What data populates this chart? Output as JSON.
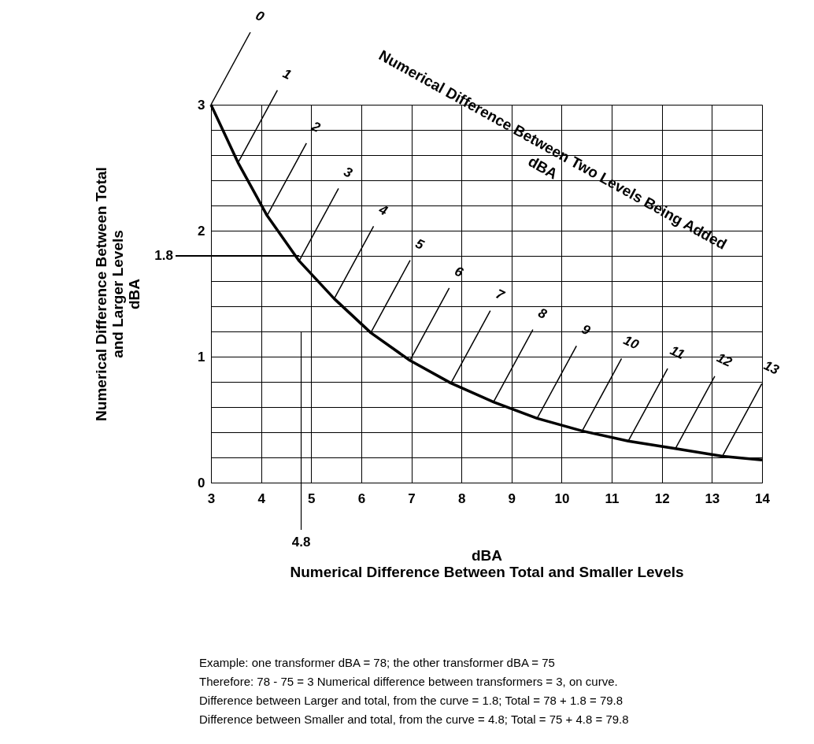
{
  "chart_data": {
    "type": "line",
    "title": "Numerical Difference Between Two Levels Being Added\ndBA",
    "xlabel": "dBA\nNumerical Difference Between Total and Smaller Levels",
    "ylabel": "Numerical Difference Between Total\nand Larger Levels\ndBA",
    "x": [
      3.0,
      3.54,
      4.12,
      4.76,
      5.46,
      6.19,
      6.97,
      7.79,
      8.64,
      9.51,
      10.41,
      11.33,
      12.27,
      13.21,
      14.0
    ],
    "series": [
      {
        "color": "#000000",
        "values": [
          3.0,
          2.54,
          2.12,
          1.76,
          1.46,
          1.19,
          0.97,
          0.79,
          0.64,
          0.51,
          0.41,
          0.33,
          0.27,
          0.21,
          0.18
        ]
      }
    ],
    "xlim": [
      3,
      14
    ],
    "xticks": [
      3,
      4,
      5,
      6,
      7,
      8,
      9,
      10,
      11,
      12,
      13,
      14
    ],
    "ylim": [
      0,
      3
    ],
    "yticks": [
      0,
      {
        "value": 0.2,
        "label": null
      },
      {
        "value": 0.4,
        "label": null
      },
      {
        "value": 0.6,
        "label": null
      },
      {
        "value": 0.8,
        "label": null
      },
      1,
      {
        "value": 1.2,
        "label": null
      },
      {
        "value": 1.4,
        "label": null
      },
      {
        "value": 1.6,
        "label": null
      },
      {
        "value": 1.8,
        "label": null
      },
      2,
      {
        "value": 2.2,
        "label": null
      },
      {
        "value": 2.4,
        "label": null
      },
      {
        "value": 2.6,
        "label": null
      },
      {
        "value": 2.8,
        "label": null
      },
      3
    ],
    "grid": true,
    "marker": "none",
    "line_style": "solid",
    "ref_lines": [
      {
        "axis": "y",
        "value": 1.8,
        "label": "1.8"
      },
      {
        "axis": "x",
        "value": 4.8,
        "label": "4.8"
      }
    ],
    "annotations": [
      {
        "text": "0",
        "x": 3.0,
        "y": 3.0
      },
      {
        "text": "1",
        "x": 3.54,
        "y": 2.54
      },
      {
        "text": "2",
        "x": 4.12,
        "y": 2.12
      },
      {
        "text": "3",
        "x": 4.76,
        "y": 1.76
      },
      {
        "text": "4",
        "x": 5.46,
        "y": 1.46
      },
      {
        "text": "5",
        "x": 6.19,
        "y": 1.19
      },
      {
        "text": "6",
        "x": 6.97,
        "y": 0.97
      },
      {
        "text": "7",
        "x": 7.79,
        "y": 0.79
      },
      {
        "text": "8",
        "x": 8.64,
        "y": 0.64
      },
      {
        "text": "9",
        "x": 9.51,
        "y": 0.51
      },
      {
        "text": "10",
        "x": 10.41,
        "y": 0.41
      },
      {
        "text": "11",
        "x": 11.33,
        "y": 0.33
      },
      {
        "text": "12",
        "x": 12.27,
        "y": 0.27
      },
      {
        "text": "13",
        "x": 13.21,
        "y": 0.21
      },
      "Example:  one transformer dBA = 78; the other transformer dBA = 75",
      "Therefore:  78 - 75 = 3  Numerical difference between transformers = 3, on curve.",
      "Difference between Larger and total, from the curve = 1.8; Total = 78 + 1.8 = 79.8",
      "Difference between Smaller and total, from the curve = 4.8; Total = 75 + 4.8 = 79.8"
    ]
  }
}
